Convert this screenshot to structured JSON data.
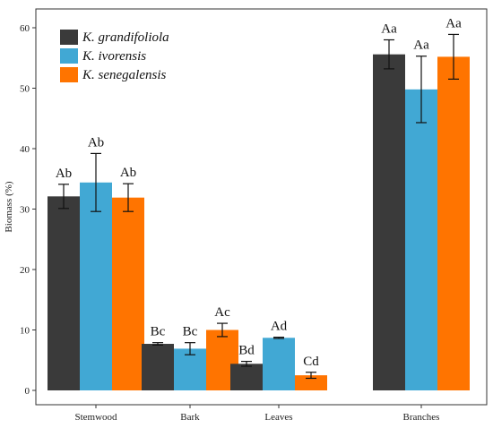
{
  "chart_data": {
    "type": "bar",
    "title": "",
    "xlabel": "",
    "ylabel": "Biomass (%)",
    "ylim": [
      0,
      62
    ],
    "yticks": [
      0,
      10,
      20,
      30,
      40,
      50,
      60
    ],
    "categories": [
      "Stemwood",
      "Bark",
      "Leaves",
      "Branches"
    ],
    "grid": false,
    "legend_position": "top-left",
    "series": [
      {
        "name": "K. grandifoliola",
        "color": "#3a3a3a",
        "values": [
          32.1,
          7.7,
          4.4,
          55.6
        ],
        "errors": [
          2.0,
          0.2,
          0.4,
          2.4
        ],
        "labels": [
          "Ab",
          "Bc",
          "Bd",
          "Aa"
        ]
      },
      {
        "name": "K. ivorensis",
        "color": "#41a8d4",
        "values": [
          34.4,
          6.9,
          8.7,
          49.8
        ],
        "errors": [
          4.8,
          1.0,
          0.1,
          5.5
        ],
        "labels": [
          "Ab",
          "Bc",
          "Ad",
          "Aa"
        ]
      },
      {
        "name": "K. senegalensis",
        "color": "#ff7400",
        "values": [
          31.9,
          10.0,
          2.5,
          55.2
        ],
        "errors": [
          2.3,
          1.1,
          0.5,
          3.7
        ],
        "labels": [
          "Ab",
          "Ac",
          "Cd",
          "Aa"
        ]
      }
    ]
  }
}
